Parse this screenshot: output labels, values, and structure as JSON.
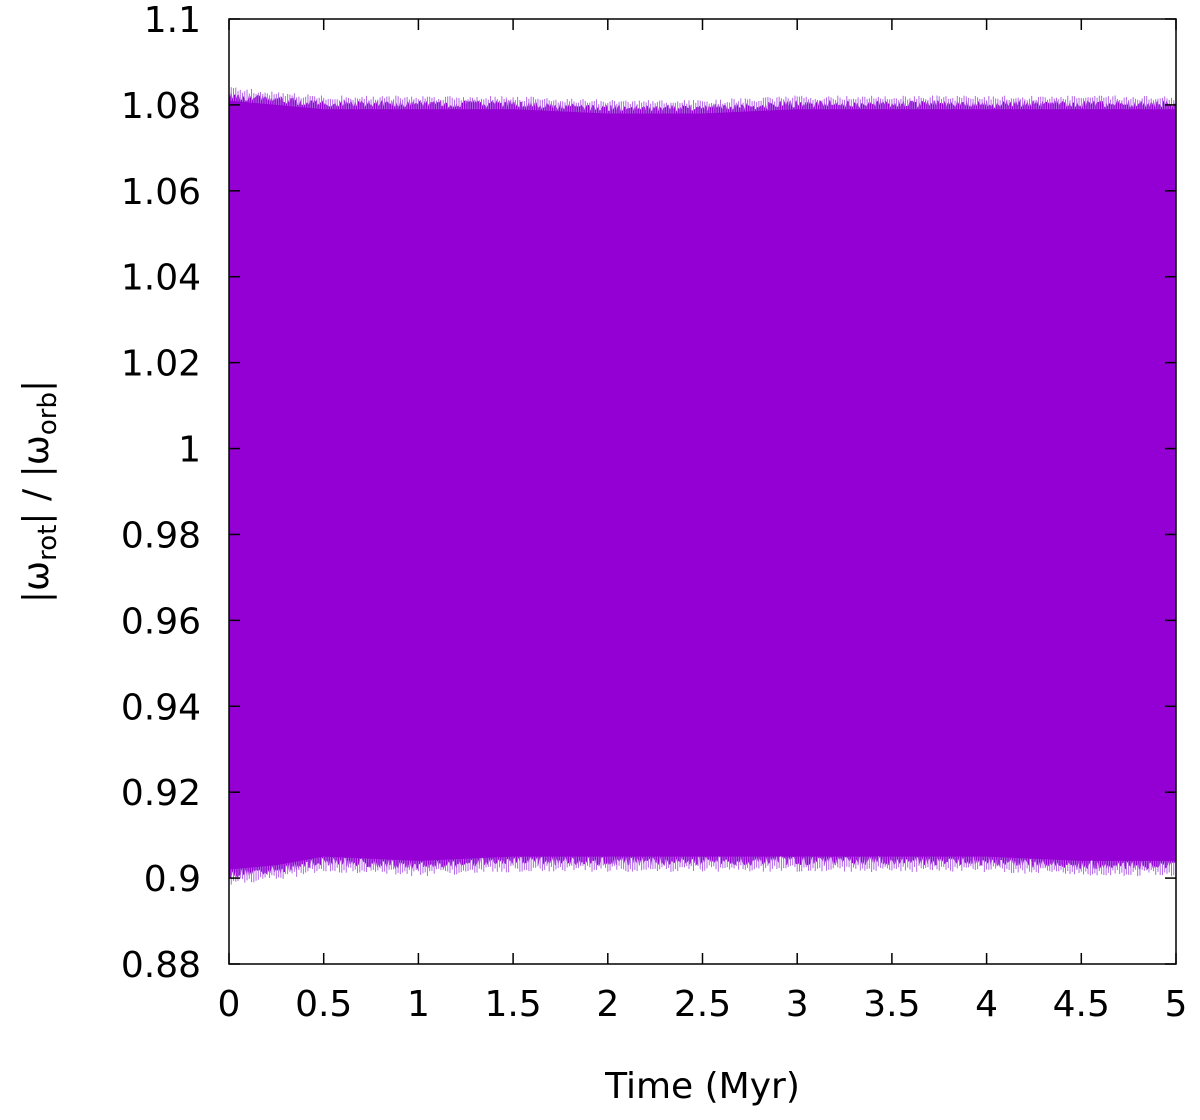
{
  "chart_data": {
    "type": "area",
    "xlabel": "Time (Myr)",
    "ylabel": {
      "prefix": "|ω",
      "sub1": "rot",
      "middle": "| / |ω",
      "sub2": "orb",
      "suffix": "|"
    },
    "xlim": [
      0,
      5
    ],
    "ylim": [
      0.88,
      1.1
    ],
    "x_ticks": [
      "0",
      "0.5",
      "1",
      "1.5",
      "2",
      "2.5",
      "3",
      "3.5",
      "4",
      "4.5",
      "5"
    ],
    "x_tick_values": [
      0,
      0.5,
      1,
      1.5,
      2,
      2.5,
      3,
      3.5,
      4,
      4.5,
      5
    ],
    "y_ticks": [
      "0.88",
      "0.9",
      "0.92",
      "0.94",
      "0.96",
      "0.98",
      "1",
      "1.02",
      "1.04",
      "1.06",
      "1.08",
      "1.1"
    ],
    "y_tick_values": [
      0.88,
      0.9,
      0.92,
      0.94,
      0.96,
      0.98,
      1.0,
      1.02,
      1.04,
      1.06,
      1.08,
      1.1
    ],
    "grid": false,
    "series": [
      {
        "color": "#9400d3",
        "description_range": "rapid oscillation between lower and upper envelope",
        "upper_envelope": {
          "x": [
            0,
            0.25,
            0.5,
            1,
            1.5,
            2,
            2.5,
            3,
            3.5,
            4,
            4.5,
            5
          ],
          "y": [
            1.083,
            1.082,
            1.081,
            1.081,
            1.081,
            1.08,
            1.08,
            1.081,
            1.081,
            1.081,
            1.081,
            1.081
          ]
        },
        "lower_envelope": {
          "x": [
            0,
            0.25,
            0.5,
            1,
            1.5,
            2,
            2.5,
            3,
            3.5,
            4,
            4.5,
            5
          ],
          "y": [
            0.9,
            0.901,
            0.903,
            0.902,
            0.903,
            0.903,
            0.903,
            0.903,
            0.903,
            0.903,
            0.902,
            0.902
          ]
        }
      }
    ]
  }
}
